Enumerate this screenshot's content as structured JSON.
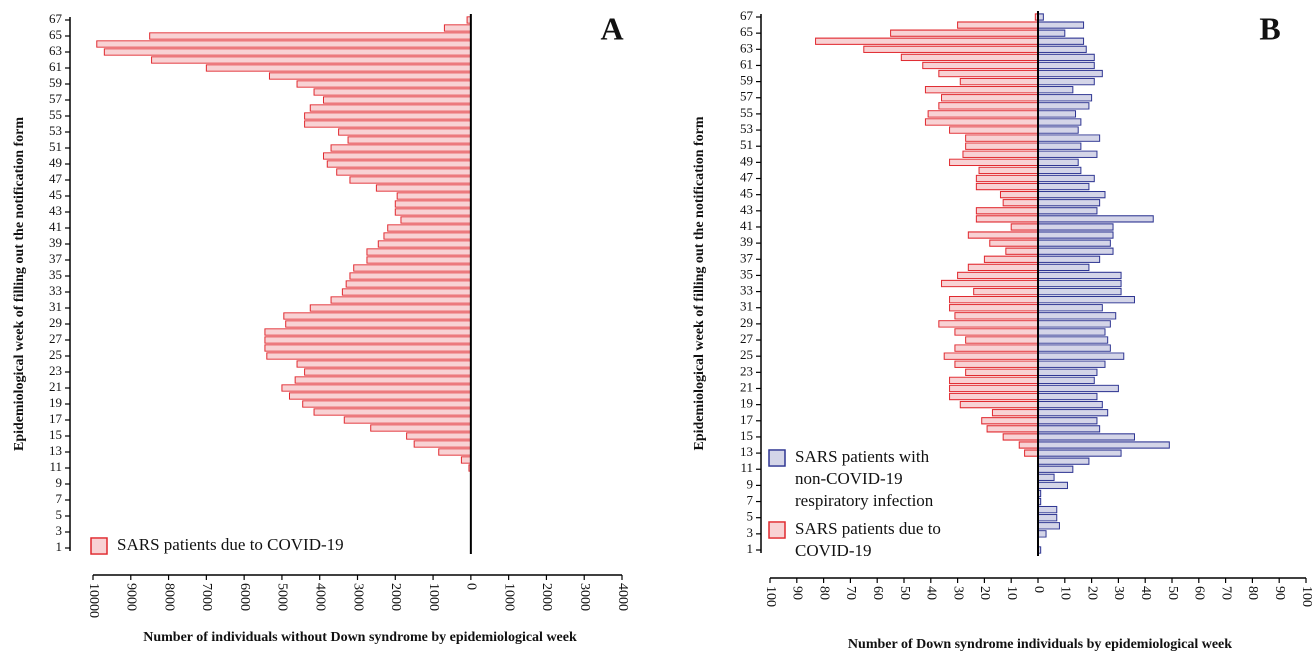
{
  "chart_data": [
    {
      "type": "bar",
      "orientation": "horizontal",
      "annotation": "A",
      "xlabel": "Number of  individuals without Down syndrome by epidemiological week",
      "ylabel": "Epidemiological week of filling out the notification form",
      "categories": [
        1,
        null,
        3,
        null,
        5,
        null,
        7,
        null,
        9,
        null,
        11,
        null,
        13,
        null,
        15,
        null,
        17,
        null,
        19,
        null,
        21,
        null,
        23,
        null,
        25,
        null,
        27,
        null,
        29,
        null,
        31,
        null,
        33,
        null,
        35,
        null,
        37,
        null,
        39,
        null,
        41,
        null,
        43,
        null,
        45,
        null,
        47,
        null,
        49,
        null,
        51,
        null,
        53,
        null,
        55,
        null,
        57,
        null,
        59,
        null,
        61,
        null,
        63,
        null,
        65,
        null,
        67
      ],
      "series": [
        {
          "name": "SARS patients due to COVID-19",
          "color": "#e0282e",
          "values": [
            0,
            0,
            0,
            0,
            0,
            0,
            0,
            0,
            0,
            0,
            -50,
            -250,
            -850,
            -1500,
            -1700,
            -2650,
            -3350,
            -4150,
            -4450,
            -4800,
            -5000,
            -4650,
            -4400,
            -4600,
            -5400,
            -5450,
            -5450,
            -5450,
            -4900,
            -4950,
            -4250,
            -3700,
            -3400,
            -3300,
            -3200,
            -3100,
            -2750,
            -2750,
            -2450,
            -2300,
            -2200,
            -1850,
            -2000,
            -2000,
            -1950,
            -2500,
            -3200,
            -3550,
            -3800,
            -3900,
            -3700,
            -3250,
            -3500,
            -4400,
            -4400,
            -4250,
            -3900,
            -4150,
            -4600,
            -5330,
            -7000,
            -8450,
            -9700,
            -9900,
            -8500,
            -700,
            -100
          ]
        }
      ],
      "xlim": [
        -10000,
        4000
      ],
      "xticks": [
        {
          "value": -10000,
          "label": "10000"
        },
        {
          "value": -9000,
          "label": "9000"
        },
        {
          "value": -8000,
          "label": "8000"
        },
        {
          "value": -7000,
          "label": "7000"
        },
        {
          "value": -6000,
          "label": "6000"
        },
        {
          "value": -5000,
          "label": "5000"
        },
        {
          "value": -4000,
          "label": "4000"
        },
        {
          "value": -3000,
          "label": "3000"
        },
        {
          "value": -2000,
          "label": "2000"
        },
        {
          "value": -1000,
          "label": "1000"
        },
        0,
        1000,
        2000,
        3000,
        4000
      ],
      "legend": "lower left"
    },
    {
      "type": "bar",
      "orientation": "horizontal",
      "annotation": "B",
      "xlabel": "Number of Down syndrome individuals by epidemiological week",
      "ylabel": "Epidemiological week of filling out the notification form",
      "categories": [
        1,
        null,
        3,
        null,
        5,
        null,
        7,
        null,
        9,
        null,
        11,
        null,
        13,
        null,
        15,
        null,
        17,
        null,
        19,
        null,
        21,
        null,
        23,
        null,
        25,
        null,
        27,
        null,
        29,
        null,
        31,
        null,
        33,
        null,
        35,
        null,
        37,
        null,
        39,
        null,
        41,
        null,
        43,
        null,
        45,
        null,
        47,
        null,
        49,
        null,
        51,
        null,
        53,
        null,
        55,
        null,
        57,
        null,
        59,
        null,
        61,
        null,
        63,
        null,
        65,
        null,
        67
      ],
      "series": [
        {
          "name": "SARS patients with non-COVID-19 respiratory infection",
          "color": "#2e3592",
          "values": [
            1,
            0,
            3,
            8,
            7,
            7,
            1,
            1,
            11,
            6,
            13,
            19,
            31,
            49,
            36,
            23,
            22,
            26,
            24,
            22,
            30,
            21,
            22,
            25,
            32,
            27,
            26,
            25,
            27,
            29,
            24,
            36,
            31,
            31,
            31,
            19,
            23,
            28,
            27,
            28,
            28,
            43,
            22,
            23,
            25,
            19,
            21,
            16,
            15,
            22,
            16,
            23,
            15,
            16,
            14,
            19,
            20,
            13,
            21,
            24,
            21,
            21,
            18,
            17,
            10,
            17,
            2
          ]
        },
        {
          "name": "SARS patients due to COVID-19",
          "color": "#e0282e",
          "values": [
            0,
            0,
            0,
            0,
            0,
            0,
            0,
            0,
            0,
            0,
            0,
            0,
            -5,
            -7,
            -13,
            -19,
            -21,
            -17,
            -29,
            -33,
            -33,
            -33,
            -27,
            -31,
            -35,
            -31,
            -27,
            -31,
            -37,
            -31,
            -33,
            -33,
            -24,
            -36,
            -30,
            -26,
            -20,
            -12,
            -18,
            -26,
            -10,
            -23,
            -23,
            -13,
            -14,
            -23,
            -23,
            -22,
            -33,
            -28,
            -27,
            -27,
            -33,
            -42,
            -41,
            -37,
            -36,
            -42,
            -29,
            -37,
            -43,
            -51,
            -65,
            -83,
            -55,
            -30,
            -1
          ]
        }
      ],
      "xlim": [
        -100,
        100
      ],
      "xticks": [
        {
          "value": -100,
          "label": "100"
        },
        {
          "value": -90,
          "label": "90"
        },
        {
          "value": -80,
          "label": "80"
        },
        {
          "value": -70,
          "label": "70"
        },
        {
          "value": -60,
          "label": "60"
        },
        {
          "value": -50,
          "label": "50"
        },
        {
          "value": -40,
          "label": "40"
        },
        {
          "value": -30,
          "label": "30"
        },
        {
          "value": -20,
          "label": "20"
        },
        {
          "value": -10,
          "label": "10"
        },
        0,
        10,
        20,
        30,
        40,
        50,
        60,
        70,
        80,
        90,
        100
      ],
      "legend": "lower left"
    }
  ]
}
